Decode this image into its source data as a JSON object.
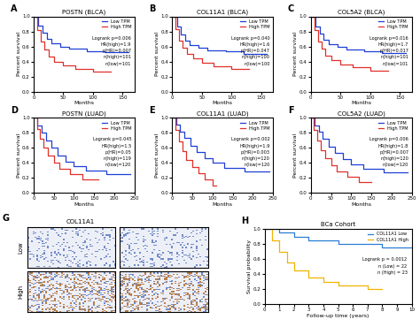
{
  "chart_data": [
    {
      "panel": "A",
      "type": "step",
      "title": "POSTN (BLCA)",
      "x_label": "Months",
      "y_label": "Percent survival",
      "xlim": [
        0,
        170
      ],
      "xticks": [
        0,
        50,
        100,
        150
      ],
      "ylim": [
        0.0,
        1.0
      ],
      "yticks": [
        0.0,
        0.2,
        0.4,
        0.6,
        0.8,
        1.0
      ],
      "legend": "upper right",
      "annotations": [
        "Logrank p=0.006",
        "HR(high)=1.9",
        "p(HR)=0.007",
        "n(high)=101",
        "n(low)=101"
      ],
      "series": [
        {
          "name": "Low TPM",
          "color": "#1f3fd6",
          "x": [
            0,
            8,
            15,
            22,
            30,
            45,
            60,
            90,
            120,
            160
          ],
          "values": [
            1.0,
            0.88,
            0.78,
            0.7,
            0.64,
            0.6,
            0.57,
            0.54,
            0.52,
            0.52
          ]
        },
        {
          "name": "High TPM",
          "color": "#e0302a",
          "x": [
            0,
            6,
            12,
            18,
            25,
            35,
            50,
            70,
            100,
            130
          ],
          "values": [
            1.0,
            0.82,
            0.66,
            0.56,
            0.47,
            0.4,
            0.35,
            0.3,
            0.26,
            0.26
          ]
        }
      ]
    },
    {
      "panel": "B",
      "type": "step",
      "title": "COL11A1 (BLCA)",
      "x_label": "Months",
      "y_label": "Percent survival",
      "xlim": [
        0,
        170
      ],
      "xticks": [
        0,
        50,
        100,
        150
      ],
      "ylim": [
        0.0,
        1.0
      ],
      "yticks": [
        0.0,
        0.2,
        0.4,
        0.6,
        0.8,
        1.0
      ],
      "legend": "upper right",
      "annotations": [
        "Logrank p=0.040",
        "HR(high)=1.6",
        "p(HR)=0.047",
        "n(high)=100",
        "n(low)=100"
      ],
      "series": [
        {
          "name": "Low TPM",
          "color": "#1f3fd6",
          "x": [
            0,
            8,
            15,
            22,
            30,
            45,
            60,
            90,
            120,
            160
          ],
          "values": [
            1.0,
            0.86,
            0.76,
            0.68,
            0.62,
            0.58,
            0.55,
            0.53,
            0.5,
            0.5
          ]
        },
        {
          "name": "High TPM",
          "color": "#e0302a",
          "x": [
            0,
            6,
            12,
            18,
            25,
            35,
            50,
            70,
            100,
            130
          ],
          "values": [
            1.0,
            0.83,
            0.68,
            0.58,
            0.5,
            0.44,
            0.38,
            0.34,
            0.3,
            0.3
          ]
        }
      ]
    },
    {
      "panel": "C",
      "type": "step",
      "title": "COL5A2 (BLCA)",
      "x_label": "Months",
      "y_label": "Percent survival",
      "xlim": [
        0,
        170
      ],
      "xticks": [
        0,
        50,
        100,
        150
      ],
      "ylim": [
        0.0,
        1.0
      ],
      "yticks": [
        0.0,
        0.2,
        0.4,
        0.6,
        0.8,
        1.0
      ],
      "legend": "upper right",
      "annotations": [
        "Logrank p=0.016",
        "HR(high)=1.7",
        "p(HR)=0.017",
        "n(high)=101",
        "n(low)=101"
      ],
      "series": [
        {
          "name": "Low TPM",
          "color": "#1f3fd6",
          "x": [
            0,
            8,
            15,
            22,
            30,
            45,
            60,
            90,
            120,
            160
          ],
          "values": [
            1.0,
            0.87,
            0.77,
            0.69,
            0.63,
            0.59,
            0.56,
            0.53,
            0.51,
            0.51
          ]
        },
        {
          "name": "High TPM",
          "color": "#e0302a",
          "x": [
            0,
            6,
            12,
            18,
            25,
            35,
            50,
            70,
            100,
            130
          ],
          "values": [
            1.0,
            0.82,
            0.67,
            0.57,
            0.48,
            0.42,
            0.36,
            0.32,
            0.28,
            0.28
          ]
        }
      ]
    },
    {
      "panel": "D",
      "type": "step",
      "title": "POSTN (LUAD)",
      "x_label": "Months",
      "y_label": "Percent survival",
      "xlim": [
        0,
        250
      ],
      "xticks": [
        0,
        50,
        100,
        150,
        200,
        250
      ],
      "ylim": [
        0.0,
        1.0
      ],
      "yticks": [
        0.0,
        0.2,
        0.4,
        0.6,
        0.8,
        1.0
      ],
      "legend": "upper right",
      "annotations": [
        "Logrank p=0.045",
        "HR(high)=1.5",
        "p(HR)=0.05",
        "n(high)=119",
        "n(low)=120"
      ],
      "series": [
        {
          "name": "Low TPM",
          "color": "#1f3fd6",
          "x": [
            0,
            10,
            20,
            30,
            45,
            60,
            80,
            100,
            130,
            180,
            240
          ],
          "values": [
            1.0,
            0.9,
            0.8,
            0.7,
            0.6,
            0.5,
            0.42,
            0.36,
            0.3,
            0.25,
            0.25
          ]
        },
        {
          "name": "High TPM",
          "color": "#e0302a",
          "x": [
            0,
            8,
            16,
            25,
            35,
            50,
            65,
            90,
            120,
            160
          ],
          "values": [
            1.0,
            0.85,
            0.72,
            0.6,
            0.5,
            0.4,
            0.32,
            0.25,
            0.18,
            0.18
          ]
        }
      ]
    },
    {
      "panel": "E",
      "type": "step",
      "title": "COL11A1 (LUAD)",
      "x_label": "Months",
      "y_label": "Percent survival",
      "xlim": [
        0,
        250
      ],
      "xticks": [
        0,
        50,
        100,
        150,
        200,
        250
      ],
      "ylim": [
        0.0,
        1.0
      ],
      "yticks": [
        0.0,
        0.2,
        0.4,
        0.6,
        0.8,
        1.0
      ],
      "legend": "upper right",
      "annotations": [
        "Logrank p=0.002",
        "HR(high)=1.9",
        "p(HR)=0.003",
        "n(high)=120",
        "n(low)=120"
      ],
      "series": [
        {
          "name": "Low TPM",
          "color": "#1f3fd6",
          "x": [
            0,
            10,
            20,
            30,
            45,
            60,
            80,
            100,
            130,
            180,
            240
          ],
          "values": [
            1.0,
            0.91,
            0.82,
            0.73,
            0.63,
            0.54,
            0.46,
            0.4,
            0.33,
            0.28,
            0.28
          ]
        },
        {
          "name": "High TPM",
          "color": "#e0302a",
          "x": [
            0,
            8,
            16,
            25,
            35,
            50,
            65,
            80,
            100,
            110
          ],
          "values": [
            1.0,
            0.84,
            0.68,
            0.55,
            0.44,
            0.34,
            0.26,
            0.18,
            0.1,
            0.1
          ]
        }
      ]
    },
    {
      "panel": "F",
      "type": "step",
      "title": "COL5A2 (LUAD)",
      "x_label": "Months",
      "y_label": "Percent survival",
      "xlim": [
        0,
        250
      ],
      "xticks": [
        0,
        50,
        100,
        150,
        200,
        250
      ],
      "ylim": [
        0.0,
        1.0
      ],
      "yticks": [
        0.0,
        0.2,
        0.4,
        0.6,
        0.8,
        1.0
      ],
      "legend": "upper right",
      "annotations": [
        "Logrank p=0.006",
        "HR(high)=1.8",
        "p(HR)=0.007",
        "n(high)=120",
        "n(low)=120"
      ],
      "series": [
        {
          "name": "Low TPM",
          "color": "#1f3fd6",
          "x": [
            0,
            10,
            20,
            30,
            45,
            60,
            80,
            100,
            130,
            180,
            240
          ],
          "values": [
            1.0,
            0.9,
            0.81,
            0.72,
            0.62,
            0.53,
            0.45,
            0.38,
            0.32,
            0.27,
            0.27
          ]
        },
        {
          "name": "High TPM",
          "color": "#e0302a",
          "x": [
            0,
            8,
            16,
            25,
            35,
            50,
            65,
            90,
            120,
            150
          ],
          "values": [
            1.0,
            0.84,
            0.7,
            0.57,
            0.46,
            0.37,
            0.29,
            0.22,
            0.15,
            0.15
          ]
        }
      ]
    },
    {
      "panel": "G",
      "type": "image",
      "title": "COL11A1",
      "rows": [
        "Low",
        "High"
      ]
    },
    {
      "panel": "H",
      "type": "step",
      "title": "BCa Cohort",
      "x_label": "Follow-up time (years)",
      "y_label": "Survival probability",
      "xlim": [
        0,
        10
      ],
      "xticks": [
        0,
        1,
        2,
        3,
        4,
        5,
        6,
        7,
        8,
        9,
        10
      ],
      "ylim": [
        0.0,
        1.0
      ],
      "yticks": [
        0.0,
        0.2,
        0.4,
        0.6,
        0.8,
        1.0
      ],
      "legend": "upper right",
      "annotations": [
        "Logrank p = 0.0012",
        "n (Low) = 22",
        "n (High) = 23"
      ],
      "series": [
        {
          "name": "COL11A1 Low",
          "color": "#2a7fd4",
          "x": [
            0,
            1,
            2,
            3,
            5,
            8,
            10
          ],
          "values": [
            1.0,
            0.95,
            0.9,
            0.85,
            0.8,
            0.75,
            0.75
          ]
        },
        {
          "name": "COL11A1 High",
          "color": "#f0b400",
          "x": [
            0,
            0.5,
            1,
            1.5,
            2,
            3,
            4,
            5,
            7,
            8
          ],
          "values": [
            1.0,
            0.85,
            0.7,
            0.55,
            0.45,
            0.35,
            0.3,
            0.25,
            0.2,
            0.2
          ]
        }
      ]
    }
  ]
}
